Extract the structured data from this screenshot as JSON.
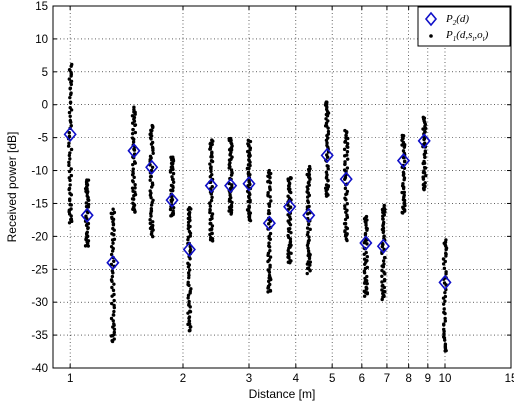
{
  "chart_data": {
    "type": "scatter",
    "xlabel": "Distance [m]",
    "ylabel": "Received power [dB]",
    "xscale": "log",
    "xlim": [
      0.9,
      15
    ],
    "ylim": [
      -40,
      15
    ],
    "grid": true,
    "legend_position": "top-right",
    "xticks": [
      1,
      2,
      3,
      4,
      5,
      6,
      7,
      8,
      9,
      10,
      15
    ],
    "yticks": [
      -40,
      -35,
      -30,
      -25,
      -20,
      -15,
      -10,
      -5,
      0,
      5,
      10,
      15
    ],
    "series": [
      {
        "name": "P2(d)",
        "legend_main": "P",
        "legend_sub": "2",
        "legend_rest": "(d)",
        "marker": "diamond",
        "color": "#1010c8",
        "points": [
          {
            "x": 1.0,
            "y": -4.5
          },
          {
            "x": 1.11,
            "y": -16.8
          },
          {
            "x": 1.3,
            "y": -24.0
          },
          {
            "x": 1.48,
            "y": -7.0
          },
          {
            "x": 1.65,
            "y": -9.5
          },
          {
            "x": 1.87,
            "y": -14.5
          },
          {
            "x": 2.08,
            "y": -22.0
          },
          {
            "x": 2.38,
            "y": -12.3
          },
          {
            "x": 2.68,
            "y": -12.3
          },
          {
            "x": 3.0,
            "y": -12.0
          },
          {
            "x": 3.4,
            "y": -18.0
          },
          {
            "x": 3.85,
            "y": -15.5
          },
          {
            "x": 4.33,
            "y": -16.8
          },
          {
            "x": 4.85,
            "y": -7.7
          },
          {
            "x": 5.45,
            "y": -11.3
          },
          {
            "x": 6.15,
            "y": -21.0
          },
          {
            "x": 6.85,
            "y": -21.5
          },
          {
            "x": 7.75,
            "y": -8.5
          },
          {
            "x": 8.8,
            "y": -5.5
          },
          {
            "x": 10.0,
            "y": -27.0
          }
        ]
      },
      {
        "name": "P1(d,st,ot)",
        "legend_main": "P",
        "legend_sub": "1",
        "legend_rest_a": "(d,s",
        "legend_sub2": "t",
        "legend_rest_b": ",o",
        "legend_sub3": "t",
        "legend_rest_c": ")",
        "marker": "dot",
        "color": "#000000",
        "clusters": [
          {
            "x": 1.0,
            "min": -18.0,
            "max": 6.0,
            "n": 60
          },
          {
            "x": 1.11,
            "min": -21.5,
            "max": -11.5,
            "n": 45
          },
          {
            "x": 1.3,
            "min": -36.0,
            "max": -16.0,
            "n": 55
          },
          {
            "x": 1.48,
            "min": -16.5,
            "max": -0.5,
            "n": 55
          },
          {
            "x": 1.65,
            "min": -20.0,
            "max": -3.0,
            "n": 55
          },
          {
            "x": 1.87,
            "min": -17.0,
            "max": -8.0,
            "n": 40
          },
          {
            "x": 2.08,
            "min": -34.5,
            "max": -15.5,
            "n": 60
          },
          {
            "x": 2.38,
            "min": -20.5,
            "max": -5.5,
            "n": 55
          },
          {
            "x": 2.68,
            "min": -16.5,
            "max": -5.0,
            "n": 50
          },
          {
            "x": 3.0,
            "min": -17.5,
            "max": -5.5,
            "n": 55
          },
          {
            "x": 3.4,
            "min": -28.5,
            "max": -10.0,
            "n": 60
          },
          {
            "x": 3.85,
            "min": -24.0,
            "max": -11.0,
            "n": 55
          },
          {
            "x": 4.33,
            "min": -25.5,
            "max": -9.5,
            "n": 55
          },
          {
            "x": 4.85,
            "min": -14.0,
            "max": 0.5,
            "n": 50
          },
          {
            "x": 5.45,
            "min": -20.5,
            "max": -4.0,
            "n": 55
          },
          {
            "x": 6.15,
            "min": -29.0,
            "max": -17.0,
            "n": 45
          },
          {
            "x": 6.85,
            "min": -29.5,
            "max": -15.5,
            "n": 50
          },
          {
            "x": 7.75,
            "min": -16.5,
            "max": -4.5,
            "n": 45
          },
          {
            "x": 8.8,
            "min": -13.0,
            "max": -2.0,
            "n": 45
          },
          {
            "x": 10.0,
            "min": -37.5,
            "max": -20.5,
            "n": 45
          }
        ]
      }
    ]
  }
}
